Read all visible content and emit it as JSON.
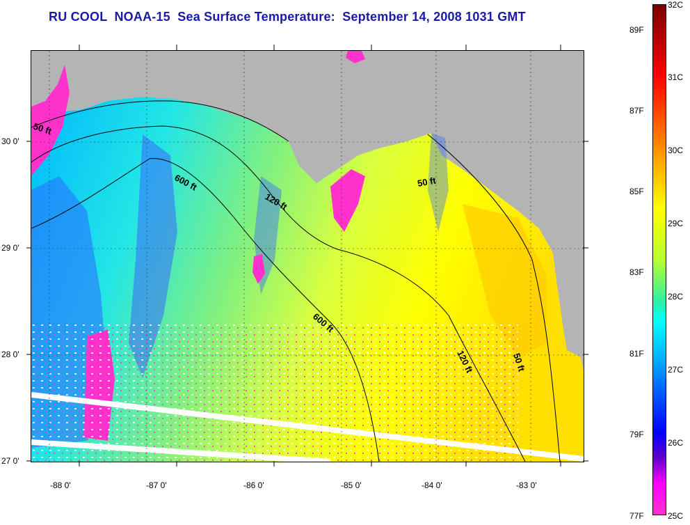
{
  "title": "RU COOL  NOAA-15  Sea Surface Temperature:  September 14, 2008 1031 GMT",
  "lat_labels": [
    "30 0'",
    "29 0'",
    "28 0'",
    "27 0'"
  ],
  "lon_labels": [
    "-88 0'",
    "-87 0'",
    "-86 0'",
    "-85 0'",
    "-84 0'",
    "-83 0'"
  ],
  "contour_labels": [
    "50 ft",
    "600 ft",
    "120 ft",
    "50 ft",
    "600 ft",
    "120 ft",
    "50 ft"
  ],
  "colorbar": {
    "celsius": [
      "32C",
      "31C",
      "30C",
      "29C",
      "28C",
      "27C",
      "26C",
      "25C"
    ],
    "fahrenheit": [
      "89F",
      "87F",
      "85F",
      "83F",
      "81F",
      "79F",
      "77F"
    ]
  },
  "colors": {
    "land": "#b4b4b4",
    "title": "#1a1aa6",
    "cold": "#ff33cc",
    "warm": "#ffff00"
  }
}
